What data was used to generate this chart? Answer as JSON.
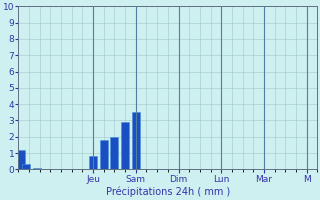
{
  "title": "",
  "xlabel": "Précipitations 24h ( mm )",
  "ylabel": "",
  "ylim": [
    0,
    10
  ],
  "background_color": "#cef0f0",
  "bar_color": "#1a4fc4",
  "bar_edge_color": "#4a90d9",
  "grid_color": "#a0c8c8",
  "tick_color": "#3333aa",
  "label_color": "#3333aa",
  "bar_positions": [
    0.5,
    1.5,
    3.5,
    14,
    16,
    18,
    20,
    22
  ],
  "bar_heights": [
    1.2,
    0.35,
    0.1,
    0.85,
    1.8,
    2.0,
    2.9,
    3.5
  ],
  "day_labels": [
    "Jeu",
    "Sam",
    "Dim",
    "Lun",
    "Mar",
    "M"
  ],
  "day_positions": [
    14,
    22,
    30,
    38,
    46,
    54
  ],
  "day_vlines": [
    14,
    22,
    30,
    38,
    46,
    54
  ],
  "total_bars": 56,
  "bar_width": 1.5,
  "yticks": [
    0,
    1,
    2,
    3,
    4,
    5,
    6,
    7,
    8,
    9,
    10
  ]
}
